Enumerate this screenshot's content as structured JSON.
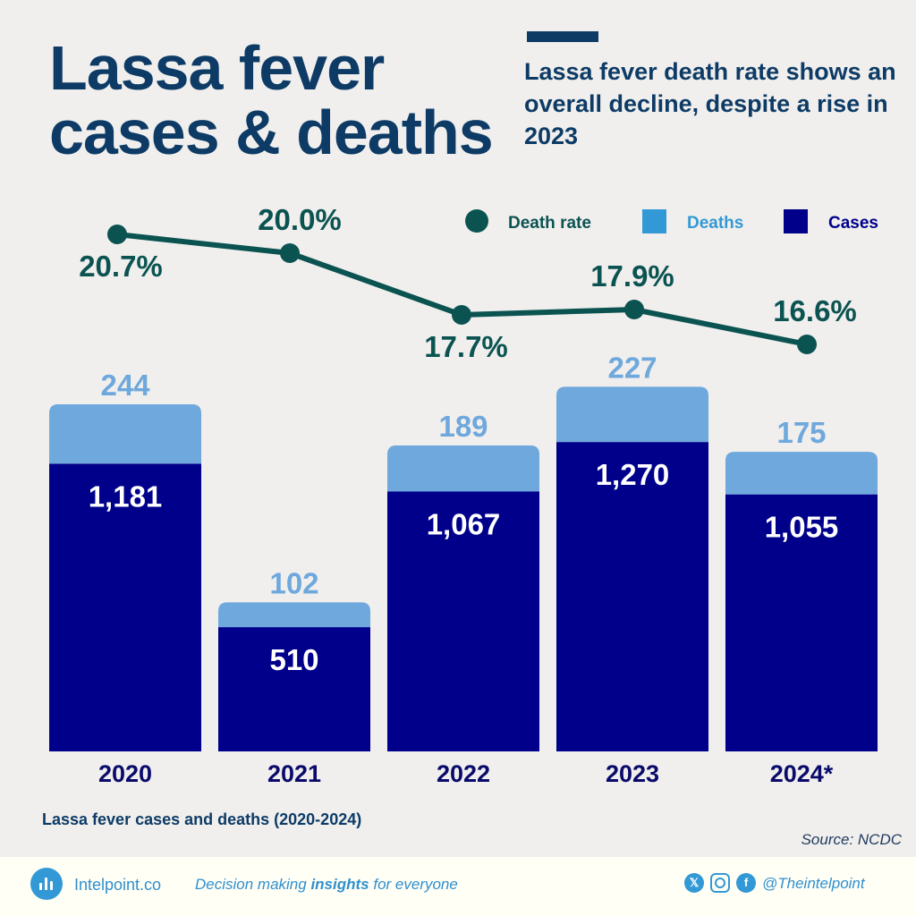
{
  "header": {
    "title_line1": "Lassa fever",
    "title_line2": "cases & deaths",
    "subtitle": "Lassa fever death rate shows an overall decline, despite a rise in 2023"
  },
  "chart_data": {
    "type": "bar",
    "stacked": true,
    "categories": [
      "2020",
      "2021",
      "2022",
      "2023",
      "2024*"
    ],
    "series": [
      {
        "name": "Cases",
        "values": [
          1181,
          510,
          1067,
          1270,
          1055
        ],
        "color": "#00008b"
      },
      {
        "name": "Deaths",
        "values": [
          244,
          102,
          189,
          227,
          175
        ],
        "color": "#6fa8dc"
      }
    ],
    "line_series": {
      "name": "Death rate",
      "values": [
        20.7,
        20.0,
        17.7,
        17.9,
        16.6
      ],
      "labels": [
        "20.7%",
        "20.0%",
        "17.7%",
        "17.9%",
        "16.6%"
      ],
      "color": "#0b5351"
    },
    "legend": [
      "Death rate",
      "Deaths",
      "Cases"
    ],
    "legend_placement": "top-right",
    "grid": false,
    "title": "Lassa fever cases and deaths (2020-2024)"
  },
  "caption": "Lassa fever cases and deaths (2020-2024)",
  "source": "Source: NCDC",
  "footer": {
    "brand": "Intelpoint.co",
    "tagline_pre": "Decision making ",
    "tagline_bold": "insights",
    "tagline_post": " for everyone",
    "handle": "@Theintelpoint",
    "icons": [
      "x-icon",
      "instagram-icon",
      "facebook-icon"
    ]
  }
}
